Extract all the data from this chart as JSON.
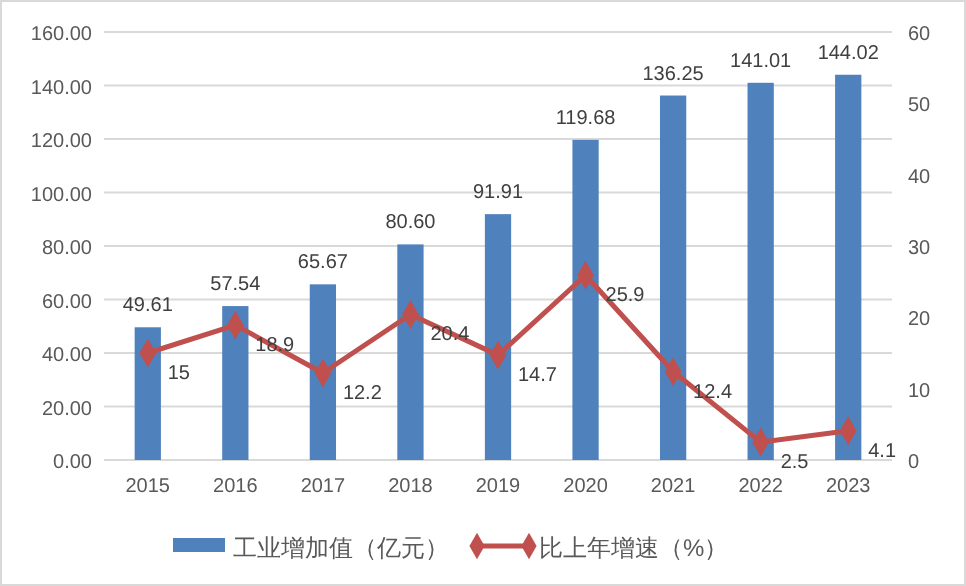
{
  "chart_data": {
    "type": "bar",
    "categories": [
      "2015",
      "2016",
      "2017",
      "2018",
      "2019",
      "2020",
      "2021",
      "2022",
      "2023"
    ],
    "series": [
      {
        "name": "工业增加值（亿元）",
        "color": "#4f81bd",
        "values": [
          49.61,
          57.54,
          65.67,
          80.6,
          91.91,
          119.68,
          136.25,
          141.01,
          144.02
        ],
        "value_labels": [
          "49.61",
          "57.54",
          "65.67",
          "80.60",
          "91.91",
          "119.68",
          "136.25",
          "141.01",
          "144.02"
        ]
      },
      {
        "name": "比上年增速（%）",
        "type": "line",
        "axis": "y2",
        "color": "#c0504d",
        "values": [
          15,
          18.9,
          12.2,
          20.4,
          14.7,
          25.9,
          12.4,
          2.5,
          4.1
        ],
        "value_labels": [
          "15",
          "18.9",
          "12.2",
          "20.4",
          "14.7",
          "25.9",
          "12.4",
          "2.5",
          "4.1"
        ]
      }
    ],
    "ylim": [
      0,
      160
    ],
    "yticks": [
      {
        "value": 0,
        "label": "0.00"
      },
      {
        "value": 20,
        "label": "20.00"
      },
      {
        "value": 40,
        "label": "40.00"
      },
      {
        "value": 60,
        "label": "60.00"
      },
      {
        "value": 80,
        "label": "80.00"
      },
      {
        "value": 100,
        "label": "100.00"
      },
      {
        "value": 120,
        "label": "120.00"
      },
      {
        "value": 140,
        "label": "140.00"
      },
      {
        "value": 160,
        "label": "160.00"
      }
    ],
    "y2lim": [
      0,
      60
    ],
    "y2ticks": [
      0,
      10,
      20,
      30,
      40,
      50,
      60
    ],
    "grid": "y",
    "legend": "bottom",
    "marker": "diamond",
    "line_style": "solid"
  }
}
